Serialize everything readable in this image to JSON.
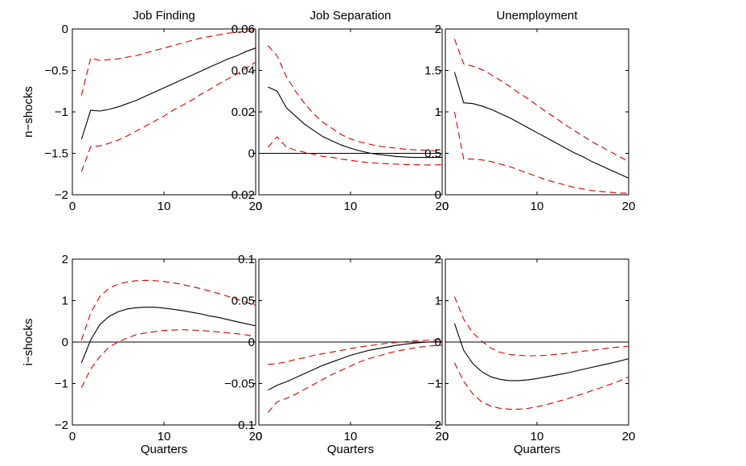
{
  "chart_data": [
    {
      "type": "line",
      "title": "Job Finding",
      "xlabel": "",
      "ylabel": "n−shocks",
      "xlim": [
        0,
        20
      ],
      "ylim": [
        -2,
        0
      ],
      "xticks": [
        0,
        10,
        20
      ],
      "xtick_labels": [
        "0",
        "10",
        "20"
      ],
      "yticks": [
        -2,
        -1.5,
        -1,
        -0.5,
        0
      ],
      "ytick_labels": [
        "−2",
        "−1.5",
        "−1",
        "−0.5",
        "0"
      ],
      "zero_line": false,
      "x": [
        1,
        2,
        3,
        4,
        5,
        6,
        7,
        8,
        9,
        10,
        11,
        12,
        13,
        14,
        15,
        16,
        17,
        18,
        19,
        20
      ],
      "series": [
        {
          "role": "estimate",
          "color": "#000000",
          "dashed": false,
          "values": [
            -1.33,
            -0.98,
            -0.99,
            -0.97,
            -0.94,
            -0.9,
            -0.86,
            -0.81,
            -0.76,
            -0.71,
            -0.66,
            -0.61,
            -0.56,
            -0.51,
            -0.46,
            -0.41,
            -0.36,
            -0.32,
            -0.27,
            -0.23
          ]
        },
        {
          "role": "upper",
          "color": "#dd0000",
          "dashed": true,
          "values": [
            -0.8,
            -0.35,
            -0.38,
            -0.37,
            -0.36,
            -0.34,
            -0.32,
            -0.29,
            -0.26,
            -0.23,
            -0.2,
            -0.17,
            -0.14,
            -0.11,
            -0.09,
            -0.07,
            -0.05,
            -0.04,
            -0.03,
            -0.02
          ]
        },
        {
          "role": "lower",
          "color": "#dd0000",
          "dashed": true,
          "values": [
            -1.72,
            -1.42,
            -1.41,
            -1.38,
            -1.34,
            -1.29,
            -1.23,
            -1.17,
            -1.11,
            -1.05,
            -0.98,
            -0.92,
            -0.86,
            -0.79,
            -0.73,
            -0.66,
            -0.6,
            -0.54,
            -0.47,
            -0.4
          ]
        }
      ]
    },
    {
      "type": "line",
      "title": "Job Separation",
      "xlabel": "",
      "ylabel": "",
      "xlim": [
        0,
        20
      ],
      "ylim": [
        -0.02,
        0.06
      ],
      "xticks": [
        0,
        10,
        20
      ],
      "xtick_labels": [
        "0",
        "10",
        "20"
      ],
      "yticks": [
        -0.02,
        0,
        0.02,
        0.04,
        0.06
      ],
      "ytick_labels": [
        "−0.02",
        "0",
        "0.02",
        "0.04",
        "0.06"
      ],
      "zero_line": true,
      "x": [
        1,
        2,
        3,
        4,
        5,
        6,
        7,
        8,
        9,
        10,
        11,
        12,
        13,
        14,
        15,
        16,
        17,
        18,
        19,
        20
      ],
      "series": [
        {
          "role": "estimate",
          "color": "#000000",
          "dashed": false,
          "values": [
            0.032,
            0.03,
            0.022,
            0.018,
            0.014,
            0.011,
            0.008,
            0.006,
            0.004,
            0.0025,
            0.0012,
            0.0002,
            -0.0005,
            -0.001,
            -0.0015,
            -0.0018,
            -0.002,
            -0.002,
            -0.002,
            -0.002
          ]
        },
        {
          "role": "upper",
          "color": "#dd0000",
          "dashed": true,
          "values": [
            0.052,
            0.047,
            0.037,
            0.03,
            0.024,
            0.019,
            0.015,
            0.012,
            0.009,
            0.007,
            0.0055,
            0.0045,
            0.0035,
            0.003,
            0.0025,
            0.002,
            0.0017,
            0.0015,
            0.0013,
            0.0012
          ]
        },
        {
          "role": "lower",
          "color": "#dd0000",
          "dashed": true,
          "values": [
            0.003,
            0.008,
            0.003,
            0.0015,
            0.0005,
            -0.0005,
            -0.0015,
            -0.002,
            -0.0028,
            -0.0034,
            -0.004,
            -0.0045,
            -0.0048,
            -0.005,
            -0.0052,
            -0.0054,
            -0.0055,
            -0.0056,
            -0.0056,
            -0.0055
          ]
        }
      ]
    },
    {
      "type": "line",
      "title": "Unemployment",
      "xlabel": "",
      "ylabel": "",
      "xlim": [
        0,
        20
      ],
      "ylim": [
        0,
        2
      ],
      "xticks": [
        0,
        10,
        20
      ],
      "xtick_labels": [
        "0",
        "10",
        "20"
      ],
      "yticks": [
        0,
        0.5,
        1,
        1.5,
        2
      ],
      "ytick_labels": [
        "0",
        "0.5",
        "1",
        "1.5",
        "2"
      ],
      "zero_line": false,
      "x": [
        1,
        2,
        3,
        4,
        5,
        6,
        7,
        8,
        9,
        10,
        11,
        12,
        13,
        14,
        15,
        16,
        17,
        18,
        19,
        20
      ],
      "series": [
        {
          "role": "estimate",
          "color": "#000000",
          "dashed": false,
          "values": [
            1.48,
            1.11,
            1.1,
            1.07,
            1.03,
            0.98,
            0.93,
            0.87,
            0.81,
            0.75,
            0.69,
            0.63,
            0.57,
            0.51,
            0.46,
            0.4,
            0.35,
            0.3,
            0.25,
            0.2
          ]
        },
        {
          "role": "upper",
          "color": "#dd0000",
          "dashed": true,
          "values": [
            1.88,
            1.58,
            1.55,
            1.51,
            1.45,
            1.38,
            1.31,
            1.23,
            1.16,
            1.08,
            1.0,
            0.93,
            0.85,
            0.78,
            0.71,
            0.64,
            0.58,
            0.52,
            0.46,
            0.4
          ]
        },
        {
          "role": "lower",
          "color": "#dd0000",
          "dashed": true,
          "values": [
            1.0,
            0.43,
            0.43,
            0.42,
            0.4,
            0.37,
            0.34,
            0.3,
            0.26,
            0.22,
            0.18,
            0.15,
            0.12,
            0.09,
            0.07,
            0.05,
            0.04,
            0.03,
            0.02,
            0.02
          ]
        }
      ]
    },
    {
      "type": "line",
      "title": "",
      "xlabel": "Quarters",
      "ylabel": "i−shocks",
      "xlim": [
        0,
        20
      ],
      "ylim": [
        -2,
        2
      ],
      "xticks": [
        0,
        10,
        20
      ],
      "xtick_labels": [
        "0",
        "10",
        "20"
      ],
      "yticks": [
        -2,
        -1,
        0,
        1,
        2
      ],
      "ytick_labels": [
        "−2",
        "−1",
        "0",
        "1",
        "2"
      ],
      "zero_line": true,
      "x": [
        1,
        2,
        3,
        4,
        5,
        6,
        7,
        8,
        9,
        10,
        11,
        12,
        13,
        14,
        15,
        16,
        17,
        18,
        19,
        20
      ],
      "series": [
        {
          "role": "estimate",
          "color": "#000000",
          "dashed": false,
          "values": [
            -0.5,
            0.05,
            0.42,
            0.62,
            0.73,
            0.8,
            0.83,
            0.84,
            0.84,
            0.82,
            0.79,
            0.76,
            0.72,
            0.68,
            0.63,
            0.59,
            0.54,
            0.49,
            0.44,
            0.39
          ]
        },
        {
          "role": "upper",
          "color": "#dd0000",
          "dashed": true,
          "values": [
            0.05,
            0.7,
            1.1,
            1.3,
            1.4,
            1.45,
            1.48,
            1.49,
            1.48,
            1.46,
            1.43,
            1.39,
            1.34,
            1.29,
            1.23,
            1.17,
            1.1,
            1.03,
            0.96,
            0.89
          ]
        },
        {
          "role": "lower",
          "color": "#dd0000",
          "dashed": true,
          "values": [
            -1.1,
            -0.65,
            -0.35,
            -0.12,
            0.0,
            0.1,
            0.18,
            0.22,
            0.25,
            0.28,
            0.29,
            0.3,
            0.29,
            0.28,
            0.26,
            0.24,
            0.22,
            0.2,
            0.17,
            0.14
          ]
        }
      ]
    },
    {
      "type": "line",
      "title": "",
      "xlabel": "Quarters",
      "ylabel": "",
      "xlim": [
        0,
        20
      ],
      "ylim": [
        -0.1,
        0.1
      ],
      "xticks": [
        0,
        10,
        20
      ],
      "xtick_labels": [
        "0",
        "10",
        "20"
      ],
      "yticks": [
        -0.1,
        -0.05,
        0,
        0.05,
        0.1
      ],
      "ytick_labels": [
        "−0.1",
        "−0.05",
        "0",
        "0.05",
        "0.1"
      ],
      "zero_line": true,
      "x": [
        1,
        2,
        3,
        4,
        5,
        6,
        7,
        8,
        9,
        10,
        11,
        12,
        13,
        14,
        15,
        16,
        17,
        18,
        19,
        20
      ],
      "series": [
        {
          "role": "estimate",
          "color": "#000000",
          "dashed": false,
          "values": [
            -0.058,
            -0.052,
            -0.048,
            -0.043,
            -0.038,
            -0.033,
            -0.028,
            -0.024,
            -0.02,
            -0.016,
            -0.013,
            -0.01,
            -0.008,
            -0.006,
            -0.004,
            -0.0025,
            -0.0012,
            -0.0003,
            0.0003,
            0.0005
          ]
        },
        {
          "role": "upper",
          "color": "#dd0000",
          "dashed": true,
          "values": [
            -0.027,
            -0.026,
            -0.024,
            -0.021,
            -0.019,
            -0.016,
            -0.014,
            -0.012,
            -0.01,
            -0.008,
            -0.006,
            -0.0045,
            -0.003,
            -0.0015,
            -0.0005,
            0.0005,
            0.0015,
            0.002,
            0.0025,
            0.003
          ]
        },
        {
          "role": "lower",
          "color": "#dd0000",
          "dashed": true,
          "values": [
            -0.085,
            -0.072,
            -0.068,
            -0.063,
            -0.057,
            -0.051,
            -0.045,
            -0.039,
            -0.034,
            -0.029,
            -0.024,
            -0.02,
            -0.017,
            -0.014,
            -0.011,
            -0.009,
            -0.007,
            -0.0055,
            -0.0045,
            -0.004
          ]
        }
      ]
    },
    {
      "type": "line",
      "title": "",
      "xlabel": "Quarters",
      "ylabel": "",
      "xlim": [
        0,
        20
      ],
      "ylim": [
        -2,
        2
      ],
      "xticks": [
        0,
        10,
        20
      ],
      "xtick_labels": [
        "0",
        "10",
        "20"
      ],
      "yticks": [
        -2,
        -1,
        0,
        1,
        2
      ],
      "ytick_labels": [
        "−2",
        "−1",
        "0",
        "1",
        "2"
      ],
      "zero_line": true,
      "x": [
        1,
        2,
        3,
        4,
        5,
        6,
        7,
        8,
        9,
        10,
        11,
        12,
        13,
        14,
        15,
        16,
        17,
        18,
        19,
        20
      ],
      "series": [
        {
          "role": "estimate",
          "color": "#000000",
          "dashed": false,
          "values": [
            0.45,
            -0.2,
            -0.52,
            -0.72,
            -0.84,
            -0.9,
            -0.93,
            -0.93,
            -0.91,
            -0.88,
            -0.84,
            -0.8,
            -0.76,
            -0.71,
            -0.66,
            -0.61,
            -0.56,
            -0.51,
            -0.46,
            -0.4
          ]
        },
        {
          "role": "upper",
          "color": "#dd0000",
          "dashed": true,
          "values": [
            1.1,
            0.55,
            0.22,
            0.02,
            -0.15,
            -0.25,
            -0.3,
            -0.32,
            -0.33,
            -0.33,
            -0.32,
            -0.3,
            -0.28,
            -0.25,
            -0.22,
            -0.2,
            -0.17,
            -0.14,
            -0.12,
            -0.1
          ]
        },
        {
          "role": "lower",
          "color": "#dd0000",
          "dashed": true,
          "values": [
            -0.5,
            -0.95,
            -1.25,
            -1.45,
            -1.55,
            -1.6,
            -1.62,
            -1.62,
            -1.6,
            -1.56,
            -1.51,
            -1.45,
            -1.39,
            -1.32,
            -1.25,
            -1.17,
            -1.1,
            -1.02,
            -0.94,
            -0.84
          ]
        }
      ]
    }
  ]
}
